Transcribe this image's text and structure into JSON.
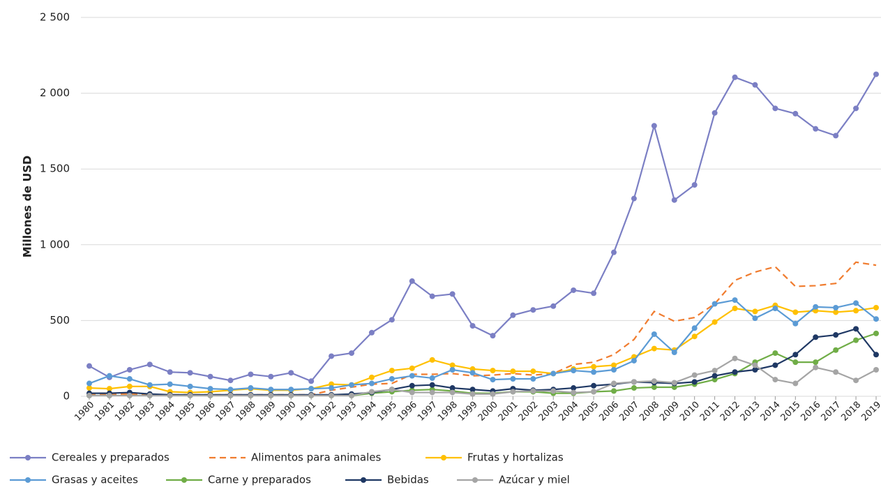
{
  "chart_data": {
    "type": "line",
    "y_label": "Millones de USD",
    "categories": [
      "1980",
      "1981",
      "1982",
      "1983",
      "1984",
      "1985",
      "1986",
      "1987",
      "1988",
      "1989",
      "1990",
      "1991",
      "1992",
      "1993",
      "1994",
      "1995",
      "1996",
      "1997",
      "1998",
      "1999",
      "2000",
      "2001",
      "2002",
      "2003",
      "2004",
      "2005",
      "2006",
      "2007",
      "2008",
      "2009",
      "2010",
      "2011",
      "2012",
      "2013",
      "2014",
      "2015",
      "2016",
      "2017",
      "2018",
      "2019"
    ],
    "ylim": [
      0,
      2500
    ],
    "yticks": [
      0,
      500,
      {
        "value": 1000,
        "label": "1 000"
      },
      {
        "value": 1500,
        "label": "1 500"
      },
      {
        "value": 2000,
        "label": "2 000"
      },
      {
        "value": 2500,
        "label": "2 500"
      }
    ],
    "grid": true,
    "legend": "bottom",
    "series": [
      {
        "name": "Cereales y preparados",
        "color": "#7b7fc4",
        "dashed": false,
        "markers": true,
        "values": [
          200,
          125,
          175,
          210,
          160,
          155,
          130,
          105,
          145,
          130,
          155,
          100,
          265,
          285,
          420,
          505,
          760,
          660,
          675,
          465,
          400,
          535,
          570,
          595,
          700,
          680,
          950,
          1305,
          1785,
          1295,
          1395,
          1870,
          2105,
          2055,
          1900,
          1865,
          1765,
          1720,
          1900,
          2125
        ]
      },
      {
        "name": "Alimentos para animales",
        "color": "#f07c2f",
        "dashed": true,
        "markers": false,
        "values": [
          15,
          15,
          15,
          10,
          10,
          10,
          10,
          10,
          10,
          10,
          10,
          10,
          40,
          60,
          80,
          85,
          145,
          145,
          150,
          135,
          140,
          150,
          140,
          150,
          210,
          225,
          275,
          375,
          560,
          495,
          520,
          610,
          765,
          820,
          855,
          725,
          730,
          745,
          885,
          865
        ]
      },
      {
        "name": "Frutas y hortalizas",
        "color": "#ffc000",
        "dashed": false,
        "markers": true,
        "values": [
          55,
          50,
          65,
          65,
          30,
          25,
          30,
          40,
          50,
          40,
          40,
          50,
          80,
          75,
          125,
          170,
          185,
          240,
          205,
          180,
          170,
          165,
          165,
          150,
          180,
          195,
          205,
          260,
          315,
          305,
          395,
          490,
          580,
          560,
          600,
          555,
          565,
          555,
          565,
          585
        ]
      },
      {
        "name": "Grasas y aceites",
        "color": "#5b9bd5",
        "dashed": false,
        "markers": true,
        "values": [
          85,
          135,
          115,
          75,
          80,
          65,
          50,
          45,
          55,
          45,
          45,
          50,
          55,
          75,
          85,
          115,
          135,
          120,
          175,
          155,
          110,
          115,
          115,
          150,
          170,
          160,
          175,
          235,
          410,
          290,
          450,
          610,
          635,
          515,
          580,
          480,
          590,
          585,
          615,
          510
        ]
      },
      {
        "name": "Carne y preparados",
        "color": "#70ad47",
        "dashed": false,
        "markers": true,
        "values": [
          5,
          5,
          5,
          5,
          5,
          5,
          5,
          5,
          5,
          5,
          5,
          5,
          5,
          5,
          20,
          30,
          40,
          45,
          35,
          20,
          20,
          30,
          30,
          20,
          20,
          30,
          35,
          55,
          60,
          60,
          80,
          110,
          150,
          225,
          285,
          225,
          225,
          305,
          370,
          415
        ]
      },
      {
        "name": "Bebidas",
        "color": "#1f3864",
        "dashed": false,
        "markers": true,
        "values": [
          20,
          20,
          25,
          15,
          10,
          10,
          10,
          10,
          10,
          10,
          10,
          10,
          10,
          15,
          25,
          45,
          70,
          75,
          55,
          45,
          35,
          50,
          40,
          45,
          55,
          70,
          80,
          95,
          90,
          85,
          95,
          135,
          160,
          175,
          205,
          275,
          390,
          405,
          445,
          275
        ]
      },
      {
        "name": "Azúcar y miel",
        "color": "#a5a5a5",
        "dashed": false,
        "markers": true,
        "values": [
          5,
          5,
          5,
          5,
          5,
          5,
          5,
          5,
          5,
          5,
          5,
          5,
          5,
          5,
          30,
          45,
          25,
          25,
          25,
          15,
          15,
          30,
          35,
          35,
          25,
          30,
          85,
          95,
          100,
          90,
          140,
          170,
          250,
          205,
          110,
          85,
          190,
          160,
          105,
          175
        ]
      }
    ]
  }
}
